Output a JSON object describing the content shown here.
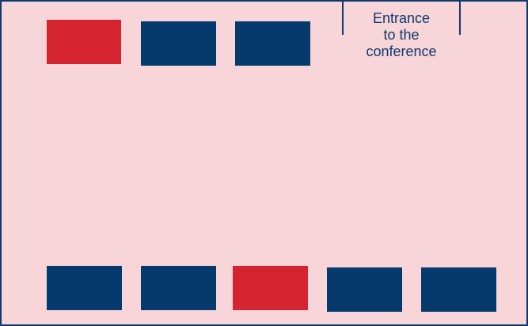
{
  "colors": {
    "background": "#f7d5d8",
    "border": "#0e3a6c",
    "booth_standard": "#063a6c",
    "booth_highlight": "#d4242f"
  },
  "entrance": {
    "label_line1": "Entrance",
    "label_line2": "to the",
    "label_line3": "conference"
  },
  "booths": {
    "top_row": [
      {
        "status": "highlight"
      },
      {
        "status": "standard"
      },
      {
        "status": "standard"
      }
    ],
    "bottom_row": [
      {
        "status": "standard"
      },
      {
        "status": "standard"
      },
      {
        "status": "highlight"
      },
      {
        "status": "standard"
      },
      {
        "status": "standard"
      }
    ]
  }
}
